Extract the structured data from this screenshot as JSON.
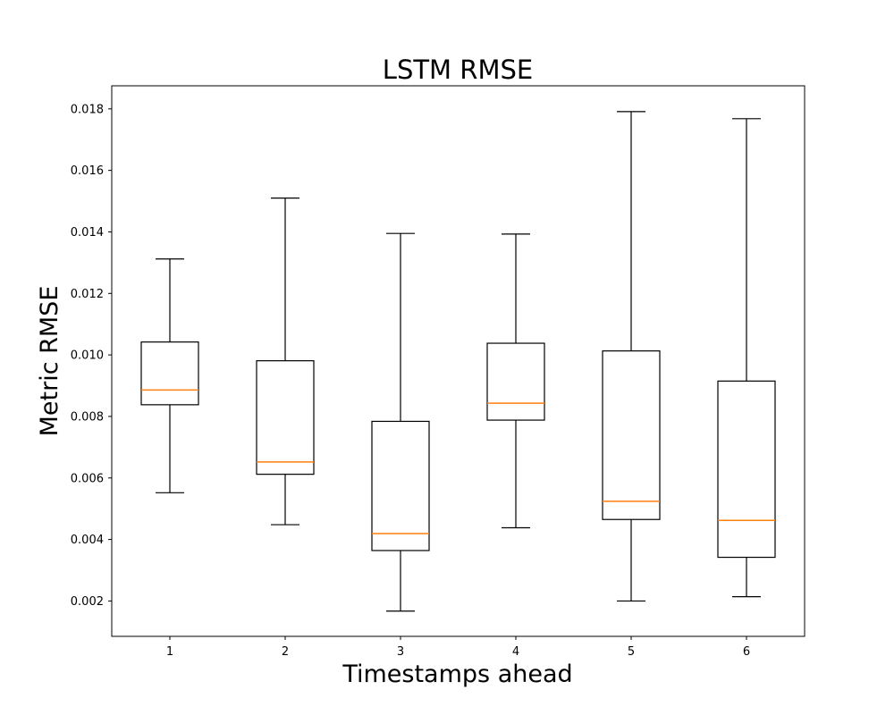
{
  "chart_data": {
    "type": "box",
    "title": "LSTM RMSE",
    "xlabel": "Timestamps ahead",
    "ylabel": "Metric RMSE",
    "categories": [
      "1",
      "2",
      "3",
      "4",
      "5",
      "6"
    ],
    "ylim": [
      0.00085,
      0.01875
    ],
    "yticks": [
      "0.002",
      "0.004",
      "0.006",
      "0.008",
      "0.010",
      "0.012",
      "0.014",
      "0.016",
      "0.018"
    ],
    "ytick_values": [
      0.002,
      0.004,
      0.006,
      0.008,
      0.01,
      0.012,
      0.014,
      0.016,
      0.018
    ],
    "boxes": [
      {
        "category": "1",
        "whisker_low": 0.00552,
        "q1": 0.00838,
        "median": 0.00886,
        "q3": 0.01042,
        "whisker_high": 0.01312
      },
      {
        "category": "2",
        "whisker_low": 0.00448,
        "q1": 0.00612,
        "median": 0.00652,
        "q3": 0.00981,
        "whisker_high": 0.0151
      },
      {
        "category": "3",
        "whisker_low": 0.00167,
        "q1": 0.00364,
        "median": 0.00419,
        "q3": 0.00784,
        "whisker_high": 0.01395
      },
      {
        "category": "4",
        "whisker_low": 0.00438,
        "q1": 0.00788,
        "median": 0.00843,
        "q3": 0.01038,
        "whisker_high": 0.01393
      },
      {
        "category": "5",
        "whisker_low": 0.002,
        "q1": 0.00465,
        "median": 0.00524,
        "q3": 0.01013,
        "whisker_high": 0.01791
      },
      {
        "category": "6",
        "whisker_low": 0.00214,
        "q1": 0.00342,
        "median": 0.00462,
        "q3": 0.00915,
        "whisker_high": 0.01768
      }
    ],
    "colors": {
      "box": "#000000",
      "median": "#ff7f0e",
      "whisker": "#000000"
    },
    "grid": false,
    "legend": "none"
  }
}
